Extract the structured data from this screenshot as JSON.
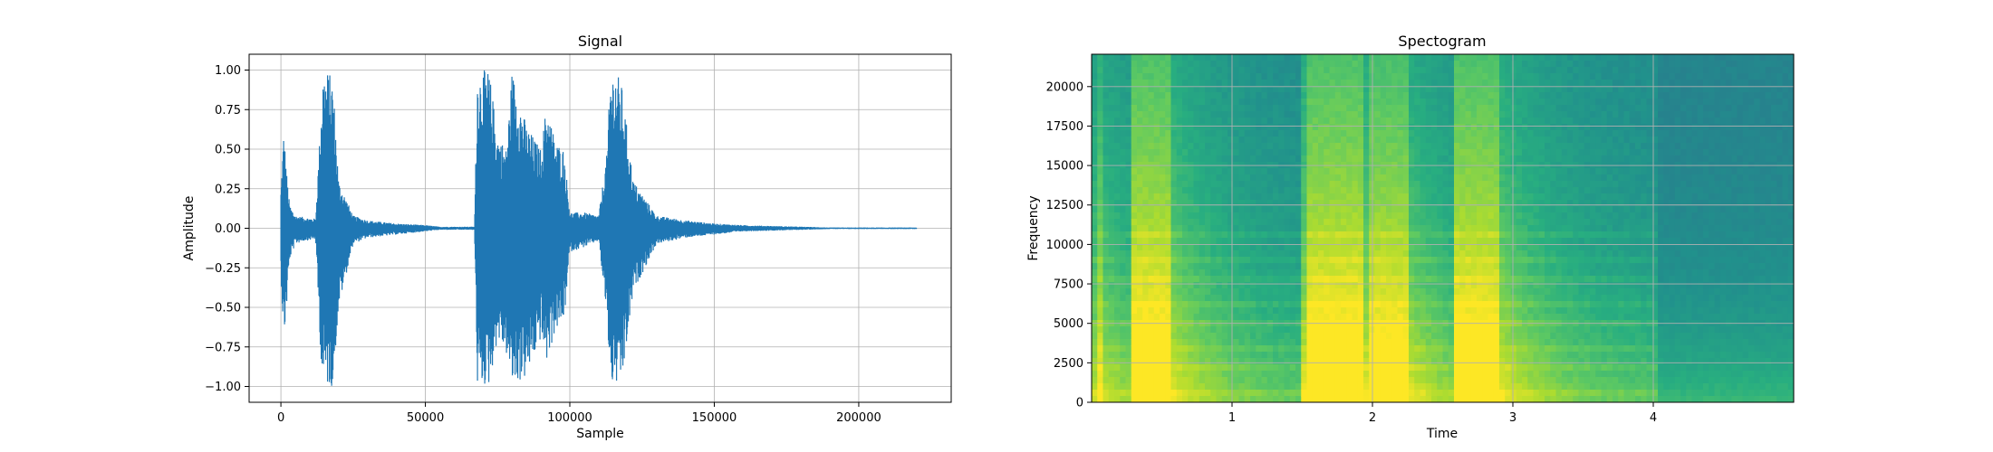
{
  "chart_data": [
    {
      "type": "line",
      "title": "Signal",
      "xlabel": "Sample",
      "ylabel": "Amplitude",
      "xlim": [
        -11000,
        232000
      ],
      "ylim": [
        -1.1,
        1.1
      ],
      "grid": true,
      "xticks": [
        0,
        50000,
        100000,
        150000,
        200000
      ],
      "xtick_labels": [
        "0",
        "50000",
        "100000",
        "150000",
        "200000"
      ],
      "yticks": [
        1.0,
        0.75,
        0.5,
        0.25,
        0.0,
        -0.25,
        -0.5,
        -0.75,
        -1.0
      ],
      "ytick_labels": [
        "1.00",
        "0.75",
        "0.50",
        "0.25",
        "0.00",
        "−0.25",
        "−0.50",
        "−0.75",
        "−1.00"
      ],
      "series": [
        {
          "color": "#1f77b4",
          "x": [
            0,
            1000,
            2000,
            3000,
            5000,
            8000,
            12000,
            13500,
            14500,
            16000,
            18000,
            20000,
            25000,
            30000,
            40000,
            50000,
            55000,
            60000,
            67000,
            68000,
            70000,
            72000,
            75000,
            78000,
            80000,
            85000,
            90000,
            92000,
            95000,
            98000,
            100000,
            105000,
            110000,
            113000,
            114000,
            116000,
            118000,
            122000,
            130000,
            140000,
            150000,
            160000,
            170000,
            180000,
            190000,
            200000,
            220000
          ],
          "amp_max": [
            0.25,
            0.63,
            0.35,
            0.15,
            0.08,
            0.07,
            0.06,
            0.6,
            1.0,
            1.0,
            0.95,
            0.3,
            0.08,
            0.05,
            0.03,
            0.02,
            0.01,
            0.01,
            0.01,
            1.0,
            1.0,
            1.0,
            0.6,
            0.5,
            1.0,
            0.65,
            0.5,
            0.8,
            0.55,
            0.5,
            0.1,
            0.1,
            0.08,
            0.5,
            1.0,
            1.0,
            0.9,
            0.3,
            0.08,
            0.05,
            0.03,
            0.02,
            0.015,
            0.01,
            0.005,
            0.005,
            0.005
          ],
          "amp_min": [
            -0.3,
            -0.73,
            -0.5,
            -0.2,
            -0.1,
            -0.08,
            -0.07,
            -0.7,
            -1.0,
            -1.0,
            -1.0,
            -0.5,
            -0.1,
            -0.06,
            -0.04,
            -0.02,
            -0.01,
            -0.01,
            -0.01,
            -1.0,
            -1.0,
            -1.0,
            -0.7,
            -0.8,
            -1.0,
            -0.95,
            -0.7,
            -0.85,
            -0.65,
            -0.6,
            -0.15,
            -0.12,
            -0.08,
            -0.6,
            -1.0,
            -1.0,
            -1.0,
            -0.4,
            -0.1,
            -0.06,
            -0.04,
            -0.02,
            -0.015,
            -0.01,
            -0.005,
            -0.005,
            -0.005
          ]
        }
      ]
    },
    {
      "type": "heatmap",
      "title": "Spectogram",
      "xlabel": "Time",
      "ylabel": "Frequency",
      "xlim": [
        0,
        5.0
      ],
      "ylim": [
        0,
        22050
      ],
      "grid": true,
      "xticks": [
        1,
        2,
        3,
        4
      ],
      "xtick_labels": [
        "1",
        "2",
        "3",
        "4"
      ],
      "yticks": [
        0,
        2500,
        5000,
        7500,
        10000,
        12500,
        15000,
        17500,
        20000
      ],
      "ytick_labels": [
        "0",
        "2500",
        "5000",
        "7500",
        "10000",
        "12500",
        "15000",
        "17500",
        "20000"
      ],
      "colormap": [
        "#3b528b",
        "#2c728e",
        "#21918c",
        "#28ae80",
        "#5ec962",
        "#addc30",
        "#fde725"
      ],
      "events": [
        {
          "start": 0.05,
          "end": 0.1,
          "peak": 0.7
        },
        {
          "start": 0.3,
          "end": 0.55,
          "peak": 1.0
        },
        {
          "start": 1.52,
          "end": 1.95,
          "peak": 1.0
        },
        {
          "start": 1.98,
          "end": 2.25,
          "peak": 0.95
        },
        {
          "start": 2.6,
          "end": 2.9,
          "peak": 1.0
        }
      ]
    }
  ]
}
